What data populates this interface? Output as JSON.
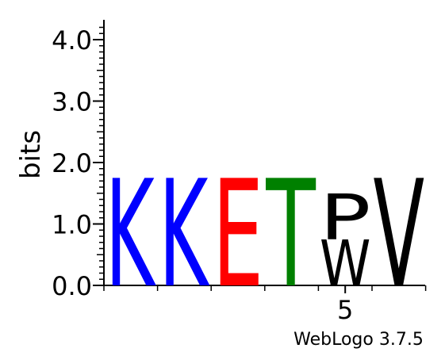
{
  "chart_data": {
    "type": "sequence-logo",
    "ylabel": "bits",
    "ylim": [
      0,
      4.3
    ],
    "yticks": [
      "0.0",
      "1.0",
      "2.0",
      "3.0",
      "4.0"
    ],
    "xtick_labels": [
      {
        "position": 5,
        "label": "5"
      }
    ],
    "positions": [
      {
        "position": 1,
        "stack": [
          {
            "letter": "K",
            "bits": 1.75,
            "color": "#0000ff"
          }
        ]
      },
      {
        "position": 2,
        "stack": [
          {
            "letter": "K",
            "bits": 1.75,
            "color": "#0000ff"
          }
        ]
      },
      {
        "position": 3,
        "stack": [
          {
            "letter": "E",
            "bits": 1.75,
            "color": "#ff0000"
          }
        ]
      },
      {
        "position": 4,
        "stack": [
          {
            "letter": "T",
            "bits": 1.75,
            "color": "#008000"
          }
        ]
      },
      {
        "position": 5,
        "stack": [
          {
            "letter": "W",
            "bits": 0.75,
            "color": "#000000"
          },
          {
            "letter": "P",
            "bits": 0.75,
            "color": "#000000"
          }
        ]
      },
      {
        "position": 6,
        "stack": [
          {
            "letter": "V",
            "bits": 1.75,
            "color": "#000000"
          }
        ]
      }
    ]
  },
  "footer": {
    "credit": "WebLogo 3.7.5"
  }
}
